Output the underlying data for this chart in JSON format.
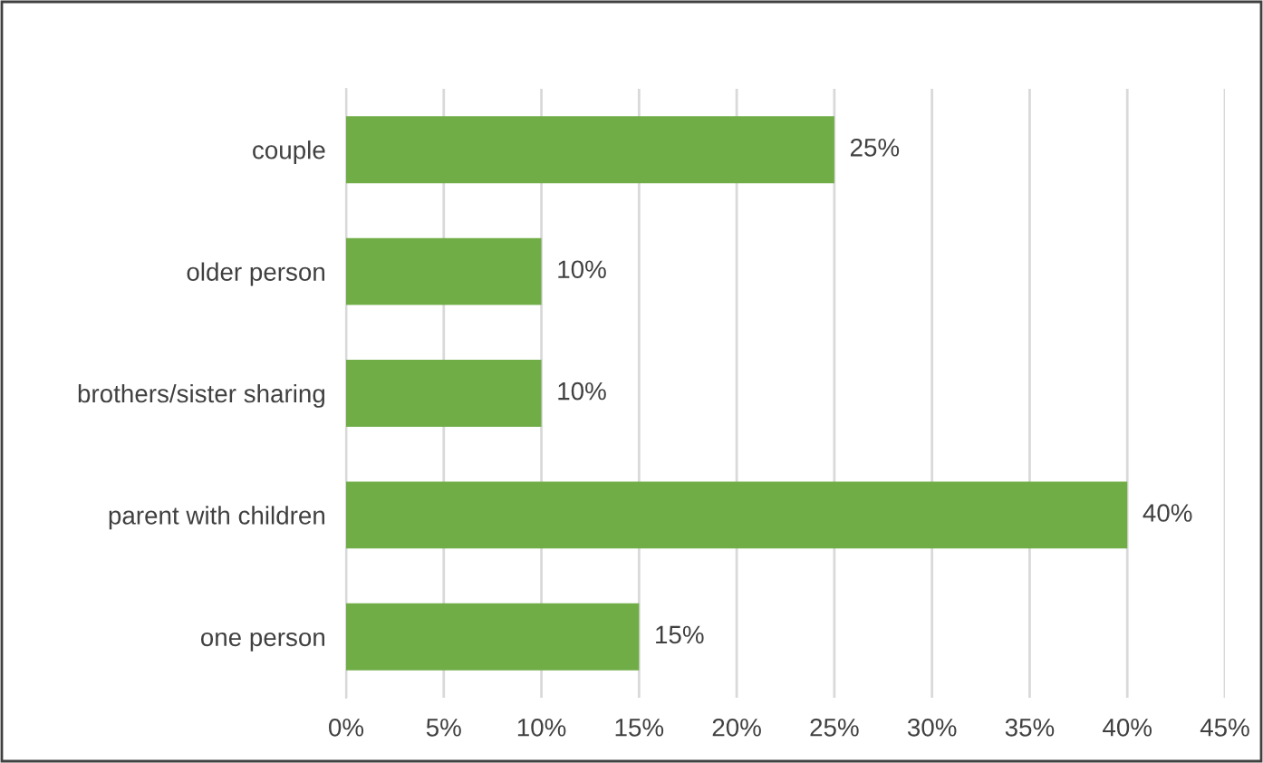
{
  "chart_data": {
    "type": "bar",
    "orientation": "horizontal",
    "categories": [
      "couple",
      "older person",
      "brothers/sister sharing",
      "parent with children",
      "one person"
    ],
    "values": [
      25,
      10,
      10,
      40,
      15
    ],
    "value_labels": [
      "25%",
      "10%",
      "10%",
      "40%",
      "15%"
    ],
    "color": "#70ad47",
    "xlim": [
      0,
      45
    ],
    "xticks": [
      {
        "value": 0,
        "label": "0%"
      },
      {
        "value": 5,
        "label": "5%"
      },
      {
        "value": 10,
        "label": "10%"
      },
      {
        "value": 15,
        "label": "15%"
      },
      {
        "value": 20,
        "label": "20%"
      },
      {
        "value": 25,
        "label": "25%"
      },
      {
        "value": 30,
        "label": "30%"
      },
      {
        "value": 35,
        "label": "35%"
      },
      {
        "value": 40,
        "label": "40%"
      },
      {
        "value": 45,
        "label": "45%"
      }
    ],
    "grid": "x",
    "legend": false
  }
}
